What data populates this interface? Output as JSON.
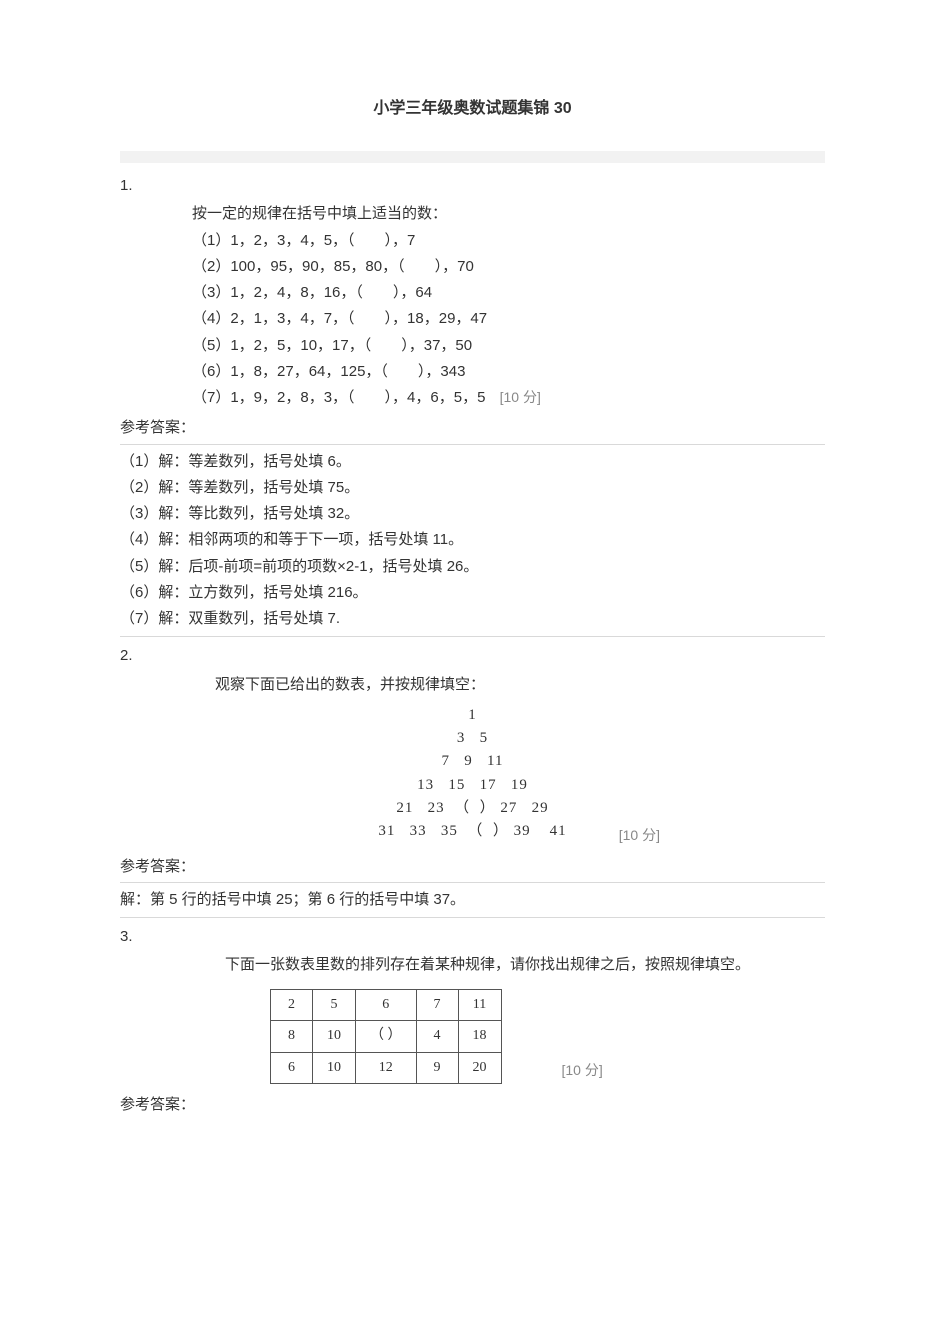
{
  "title": "小学三年级奥数试题集锦 30",
  "points_label_10": "[10 分]",
  "q1": {
    "num": "1.",
    "intro": "按一定的规律在括号中填上适当的数：",
    "lines": [
      "（1）1，2，3，4，5，（　　），7",
      "（2）100，95，90，85，80，（　　），70",
      "（3）1，2，4，8，16，（　　），64",
      "（4）2，1，3，4，7，（　　），18，29，47",
      "（5）1，2，5，10，17，（　　），37，50",
      "（6）1，8，27，64，125，（　　），343",
      "（7）1，9，2，8，3，（　　），4，6，5，5"
    ],
    "answer_label": "参考答案：",
    "answers": [
      "（1）解：等差数列，括号处填 6。",
      "（2）解：等差数列，括号处填 75。",
      "（3）解：等比数列，括号处填 32。",
      "（4）解：相邻两项的和等于下一项，括号处填 11。",
      "（5）解：后项-前项=前项的项数×2-1，括号处填  26。",
      "（6）解：立方数列，括号处填 216。",
      "（7）解：双重数列，括号处填 7."
    ]
  },
  "q2": {
    "num": "2.",
    "intro": "观察下面已给出的数表，并按规律填空：",
    "triangle": [
      "1",
      "3   5",
      "7   9   11",
      "13   15   17   19",
      "21   23  （  ） 27   29",
      "31   33   35  （  ） 39    41"
    ],
    "answer_label": "参考答案：",
    "answers": [
      "解：第 5 行的括号中填 25；第 6 行的括号中填 37。"
    ]
  },
  "q3": {
    "num": "3.",
    "intro": "下面一张数表里数的排列存在着某种规律，请你找出规律之后，按照规律填空。",
    "table": {
      "rows": [
        [
          "2",
          "5",
          "6",
          "7",
          "11"
        ],
        [
          "8",
          "10",
          "（ ）",
          "4",
          "18"
        ],
        [
          "6",
          "10",
          "12",
          "9",
          "20"
        ]
      ]
    },
    "answer_label": "参考答案："
  },
  "style": {
    "text_color": "#333333",
    "muted_color": "#888888",
    "background_color": "#ffffff",
    "bar_color": "#f2f2f2",
    "border_color": "#d9d9d9",
    "table_border_color": "#555555",
    "base_fontsize": 15,
    "title_fontsize": 16
  }
}
